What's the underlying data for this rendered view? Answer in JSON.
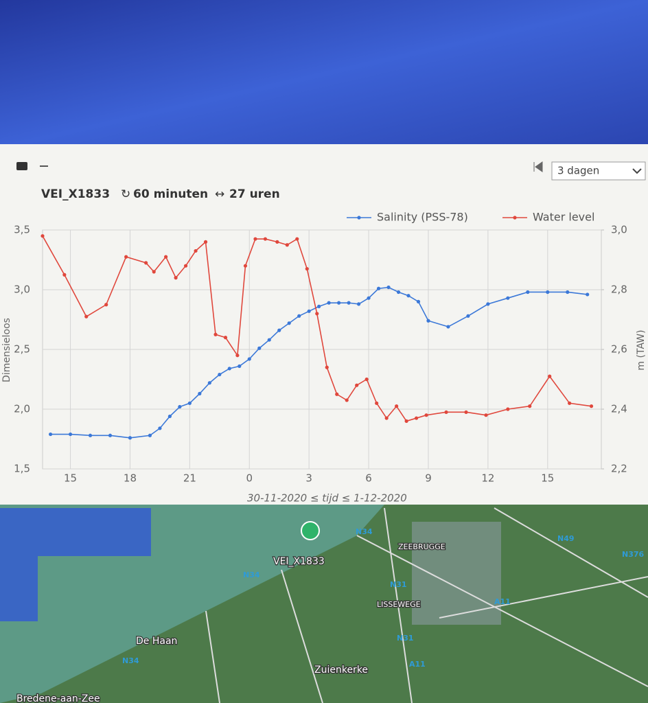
{
  "toolbar": {
    "range_select": "3 dagen"
  },
  "header": {
    "station": "VEI_X1833",
    "interval": "60 minuten",
    "span": "27 uren"
  },
  "chart_data": {
    "type": "line",
    "x_label": "30-11-2020 ≤ tijd ≤ 1-12-2020",
    "y_label": "Dimensieloos",
    "y2_label": "m (TAW)",
    "xlim": [
      13.6,
      41.7
    ],
    "xticks": [
      15,
      18,
      21,
      {
        "value": 24,
        "label": "0"
      },
      {
        "value": 27,
        "label": "3"
      },
      {
        "value": 30,
        "label": "6"
      },
      {
        "value": 33,
        "label": "9"
      },
      {
        "value": 36,
        "label": "12"
      },
      {
        "value": 39,
        "label": "15"
      }
    ],
    "ylim": [
      1.5,
      3.5
    ],
    "yticks": [
      {
        "value": 1.5,
        "label": "1,5"
      },
      {
        "value": 2.0,
        "label": "2,0"
      },
      {
        "value": 2.5,
        "label": "2,5"
      },
      {
        "value": 3.0,
        "label": "3,0"
      },
      {
        "value": 3.5,
        "label": "3,5"
      }
    ],
    "y2lim": [
      2.2,
      3.0
    ],
    "y2ticks": [
      {
        "value": 2.2,
        "label": "2,2"
      },
      {
        "value": 2.4,
        "label": "2,4"
      },
      {
        "value": 2.6,
        "label": "2,6"
      },
      {
        "value": 2.8,
        "label": "2,8"
      },
      {
        "value": 3.0,
        "label": "3,0"
      }
    ],
    "grid": true,
    "legend": "top-right",
    "series": [
      {
        "name": "Salinity (PSS-78)",
        "color": "#3b78d8",
        "axis": "y",
        "x": [
          14,
          15,
          16,
          17,
          18,
          19,
          19.5,
          20,
          20.5,
          21,
          21.5,
          22,
          22.5,
          23,
          23.5,
          24,
          24.5,
          25,
          25.5,
          26,
          26.5,
          27,
          27.5,
          28,
          28.5,
          29,
          29.5,
          30,
          30.5,
          31,
          31.5,
          32,
          32.5,
          33,
          34,
          35,
          36,
          37,
          38,
          39,
          40,
          41
        ],
        "values": [
          1.79,
          1.79,
          1.78,
          1.78,
          1.76,
          1.78,
          1.84,
          1.94,
          2.02,
          2.05,
          2.13,
          2.22,
          2.29,
          2.34,
          2.36,
          2.42,
          2.51,
          2.58,
          2.66,
          2.72,
          2.78,
          2.82,
          2.86,
          2.89,
          2.89,
          2.89,
          2.88,
          2.93,
          3.01,
          3.02,
          2.98,
          2.95,
          2.9,
          2.74,
          2.69,
          2.78,
          2.88,
          2.93,
          2.98,
          2.98,
          2.98,
          2.96
        ]
      },
      {
        "name": "Water level",
        "color": "#e0473c",
        "axis": "y2",
        "x": [
          13.6,
          14.7,
          15.8,
          16.8,
          17.8,
          18.8,
          19.2,
          19.8,
          20.3,
          20.8,
          21.3,
          21.8,
          22.3,
          22.8,
          23.4,
          23.8,
          24.3,
          24.8,
          25.4,
          25.9,
          26.4,
          26.9,
          27.4,
          27.9,
          28.4,
          28.9,
          29.4,
          29.9,
          30.4,
          30.9,
          31.4,
          31.9,
          32.4,
          32.9,
          33.9,
          34.9,
          35.9,
          37.0,
          38.1,
          39.1,
          40.1,
          41.2
        ],
        "values": [
          2.98,
          2.85,
          2.71,
          2.75,
          2.91,
          2.89,
          2.86,
          2.91,
          2.84,
          2.88,
          2.93,
          2.96,
          2.65,
          2.64,
          2.58,
          2.88,
          2.97,
          2.97,
          2.96,
          2.95,
          2.97,
          2.87,
          2.72,
          2.54,
          2.45,
          2.43,
          2.48,
          2.5,
          2.42,
          2.37,
          2.41,
          2.36,
          2.37,
          2.38,
          2.39,
          2.39,
          2.38,
          2.4,
          2.41,
          2.51,
          2.42,
          2.41
        ]
      }
    ]
  },
  "map": {
    "labels": [
      "N34",
      "ZEEBRUGGE",
      "N49",
      "N376",
      "VEI_X1833",
      "N34",
      "N31",
      "LISSEWEGE",
      "A11",
      "N31",
      "De Haan",
      "N34",
      "Zuienkerke",
      "A11",
      "Bredene-aan-Zee"
    ]
  }
}
